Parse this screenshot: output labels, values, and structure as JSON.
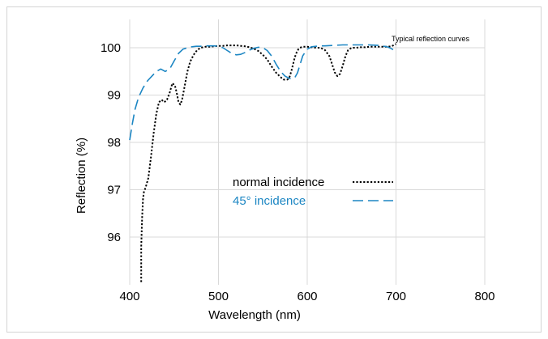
{
  "chart_data": {
    "type": "line",
    "title": "Typical reflection curves",
    "xlabel": "Wavelength (nm)",
    "ylabel": "Reflection (%)",
    "xlim": [
      400,
      800
    ],
    "ylim": [
      95,
      100.5
    ],
    "xticks": [
      400,
      500,
      600,
      700,
      800
    ],
    "yticks": [
      96,
      97,
      98,
      99,
      100
    ],
    "xtick_labels": [
      "400",
      "500",
      "600",
      "700",
      "800"
    ],
    "ytick_labels": [
      "96",
      "97",
      "98",
      "99",
      "100"
    ],
    "grid": true,
    "legend": "center",
    "series": [
      {
        "name": "normal incidence",
        "color": "#000000",
        "style": "dotted",
        "x": [
          413,
          413,
          414,
          415,
          416,
          418,
          421,
          424,
          427,
          430,
          433,
          436,
          439,
          442,
          445,
          448,
          451,
          453,
          455,
          457,
          459,
          461,
          463,
          465,
          468,
          472,
          476,
          480,
          485,
          490,
          495,
          500,
          505,
          510,
          515,
          520,
          525,
          530,
          535,
          540,
          545,
          550,
          555,
          560,
          565,
          570,
          573,
          576,
          578,
          580,
          582,
          584,
          586,
          588,
          590,
          592,
          595,
          600,
          605,
          610,
          615,
          620,
          625,
          628,
          631,
          634,
          637,
          640,
          643,
          646,
          650,
          655,
          660,
          665,
          670,
          675,
          680,
          685,
          690,
          695,
          700
        ],
        "values": [
          95.05,
          95.8,
          96.4,
          96.8,
          96.95,
          97.05,
          97.25,
          97.7,
          98.2,
          98.6,
          98.85,
          98.9,
          98.85,
          98.9,
          99.05,
          99.25,
          99.2,
          99.05,
          98.85,
          98.8,
          98.9,
          99.1,
          99.3,
          99.5,
          99.7,
          99.85,
          99.95,
          100.0,
          100.02,
          100.02,
          100.03,
          100.04,
          100.04,
          100.05,
          100.05,
          100.05,
          100.04,
          100.03,
          100.01,
          99.98,
          99.93,
          99.85,
          99.75,
          99.6,
          99.47,
          99.38,
          99.33,
          99.32,
          99.33,
          99.38,
          99.5,
          99.65,
          99.8,
          99.9,
          99.97,
          100.0,
          100.02,
          100.02,
          100.01,
          100.0,
          100.0,
          99.95,
          99.82,
          99.65,
          99.48,
          99.4,
          99.45,
          99.62,
          99.82,
          99.95,
          100.0,
          100.0,
          100.01,
          100.01,
          100.02,
          100.02,
          100.02,
          100.02,
          100.02,
          100.03,
          100.08
        ]
      },
      {
        "name": "45° incidence",
        "color": "#1c86c3",
        "style": "dashed",
        "x": [
          400,
          403,
          406,
          410,
          415,
          420,
          425,
          430,
          435,
          440,
          445,
          450,
          455,
          460,
          465,
          470,
          475,
          480,
          485,
          490,
          495,
          500,
          505,
          510,
          515,
          520,
          525,
          530,
          535,
          540,
          545,
          550,
          555,
          560,
          565,
          570,
          575,
          580,
          583,
          586,
          589,
          592,
          595,
          600,
          605,
          610,
          615,
          620,
          630,
          640,
          650,
          660,
          670,
          680,
          690,
          695,
          700
        ],
        "values": [
          98.05,
          98.4,
          98.7,
          98.95,
          99.15,
          99.3,
          99.4,
          99.5,
          99.55,
          99.5,
          99.55,
          99.72,
          99.88,
          99.97,
          100.0,
          100.02,
          100.03,
          100.03,
          100.04,
          100.04,
          100.04,
          100.03,
          100.0,
          99.94,
          99.88,
          99.85,
          99.86,
          99.9,
          99.95,
          99.99,
          100.01,
          100.0,
          99.94,
          99.82,
          99.65,
          99.5,
          99.4,
          99.35,
          99.34,
          99.37,
          99.47,
          99.65,
          99.83,
          99.97,
          100.02,
          100.03,
          100.04,
          100.04,
          100.05,
          100.06,
          100.06,
          100.06,
          100.06,
          100.05,
          100.02,
          99.98,
          99.92
        ]
      }
    ]
  }
}
